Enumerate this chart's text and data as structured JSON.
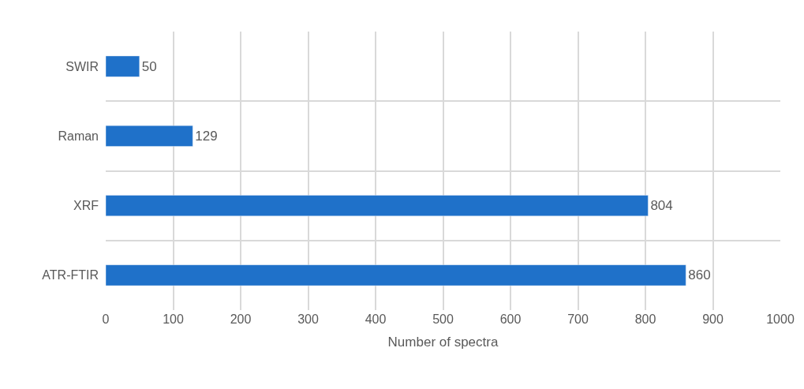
{
  "chart_data": {
    "type": "bar",
    "orientation": "horizontal",
    "xlabel": "Number of spectra",
    "categories": [
      "SWIR",
      "Raman",
      "XRF",
      "ATR-FTIR"
    ],
    "values": [
      50,
      129,
      804,
      860
    ],
    "color": "#1f71c9",
    "xlim": [
      0,
      1000
    ],
    "xticks": [
      0,
      100,
      200,
      300,
      400,
      500,
      600,
      700,
      800,
      900,
      1000
    ],
    "grid": true,
    "data_labels": true
  }
}
